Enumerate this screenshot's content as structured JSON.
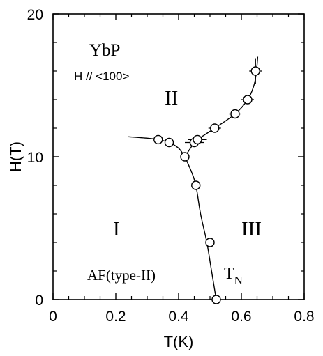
{
  "chart_data": {
    "type": "scatter",
    "xlabel": "T(K)",
    "ylabel": "H(T)",
    "xlim": [
      0,
      0.8
    ],
    "ylim": [
      0,
      20
    ],
    "xticks": [
      0,
      0.2,
      0.4,
      0.6,
      0.8
    ],
    "xtick_labels": [
      "0",
      "0.2",
      "0.4",
      "0.6",
      "0.8"
    ],
    "yticks": [
      0,
      10,
      20
    ],
    "ytick_labels": [
      "0",
      "10",
      "20"
    ],
    "grid": false,
    "legend": "none",
    "annotations": {
      "compound": "YbP",
      "field_direction": "H // <100>",
      "phase_I": "I",
      "phase_II": "II",
      "phase_III": "III",
      "phase_I_type": "AF(type-II)",
      "tn_main": "T",
      "tn_sub": "N"
    },
    "series": [
      {
        "points": [
          {
            "x": 0.52,
            "y": 0.0
          },
          {
            "x": 0.5,
            "y": 4.0
          },
          {
            "x": 0.455,
            "y": 8.0
          },
          {
            "x": 0.42,
            "y": 10.0
          },
          {
            "x": 0.335,
            "y": 11.2
          },
          {
            "x": 0.37,
            "y": 11.0
          },
          {
            "x": 0.45,
            "y": 11.0,
            "xerr": 0.03
          },
          {
            "x": 0.46,
            "y": 11.2,
            "xerr": 0.03
          },
          {
            "x": 0.515,
            "y": 12.0,
            "xerr": 0.02
          },
          {
            "x": 0.58,
            "y": 13.0,
            "xerr": 0.02
          },
          {
            "x": 0.62,
            "y": 14.0,
            "xerr": 0.02
          },
          {
            "x": 0.645,
            "y": 16.0,
            "xerr": 0.02,
            "yerr": 0.9
          }
        ]
      }
    ],
    "boundary_lines": [
      {
        "x": [
          0.52,
          0.505,
          0.49,
          0.47,
          0.455,
          0.44,
          0.42
        ],
        "y": [
          0.0,
          2.0,
          4.0,
          6.0,
          8.0,
          9.0,
          10.0
        ]
      },
      {
        "x": [
          0.42,
          0.4,
          0.37,
          0.335,
          0.3,
          0.24
        ],
        "y": [
          10.0,
          10.6,
          11.0,
          11.2,
          11.3,
          11.4
        ]
      },
      {
        "x": [
          0.42,
          0.45,
          0.46,
          0.515,
          0.58,
          0.62,
          0.64,
          0.648,
          0.652
        ],
        "y": [
          10.0,
          11.0,
          11.2,
          12.0,
          13.0,
          14.0,
          15.0,
          16.0,
          17.0
        ]
      }
    ]
  }
}
